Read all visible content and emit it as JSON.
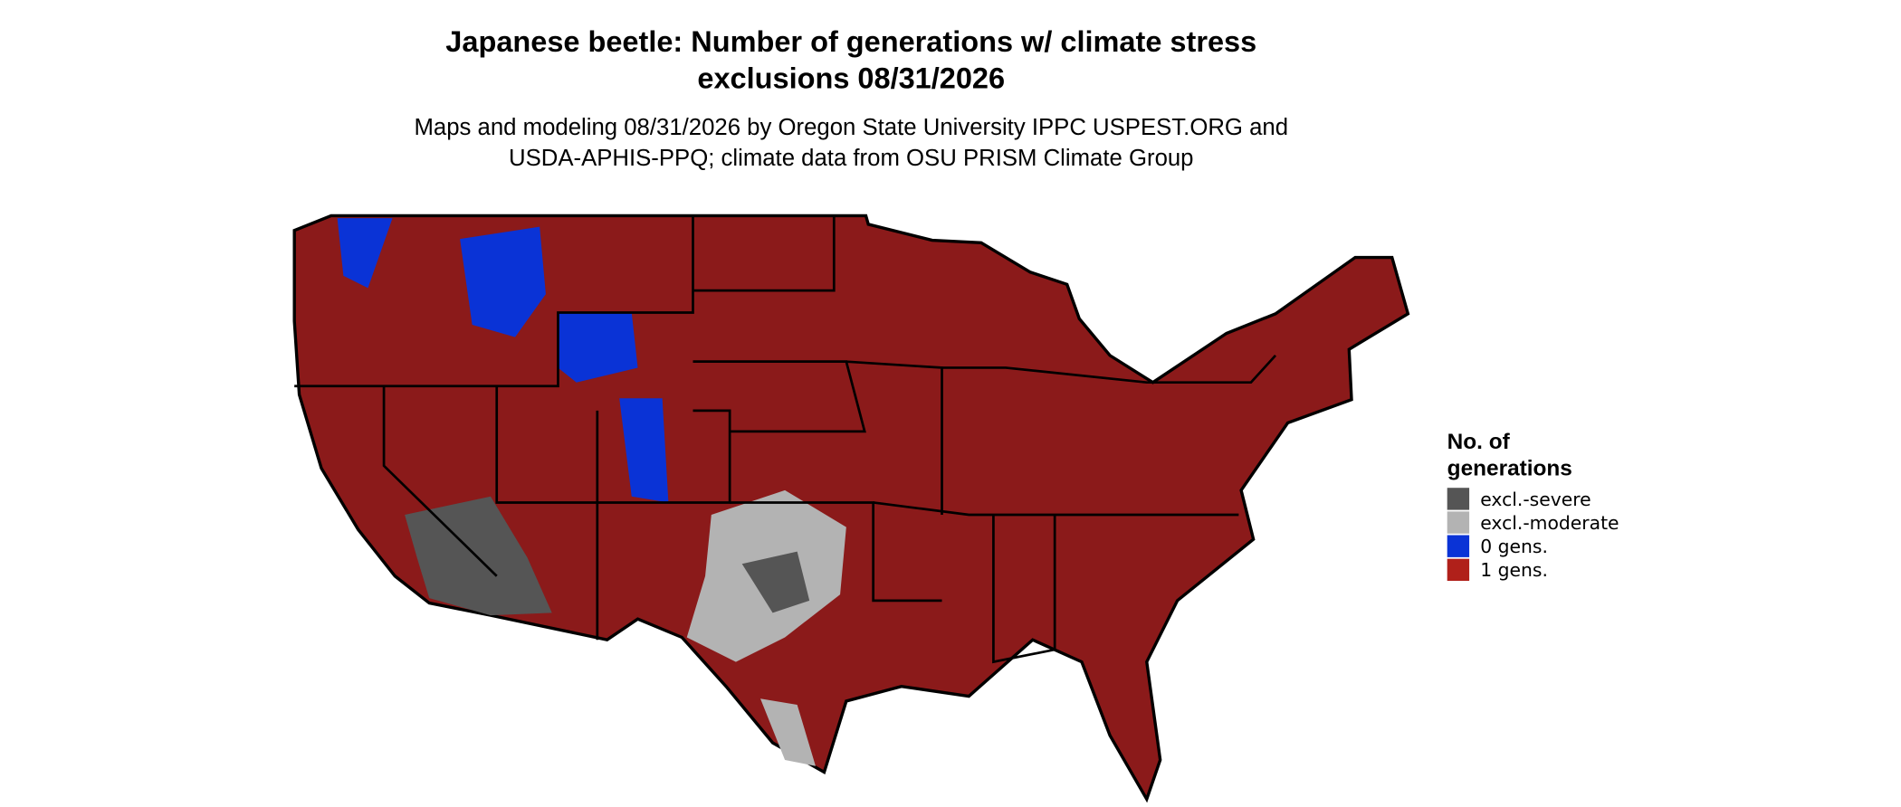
{
  "title_lines": [
    "Japanese beetle: Number of generations w/ climate stress",
    "exclusions 08/31/2026"
  ],
  "subtitle_lines": [
    "Maps and modeling 08/31/2026 by Oregon State University IPPC USPEST.ORG and",
    "USDA-APHIS-PPQ; climate data from OSU PRISM Climate Group"
  ],
  "legend": {
    "title_lines": [
      "No. of",
      "generations"
    ],
    "items": [
      {
        "label": "excl.-severe",
        "color": "#555555"
      },
      {
        "label": "excl.-moderate",
        "color": "#b3b3b3"
      },
      {
        "label": "0 gens.",
        "color": "#0a33d6"
      },
      {
        "label": "1 gens.",
        "color": "#b0201a"
      }
    ]
  }
}
